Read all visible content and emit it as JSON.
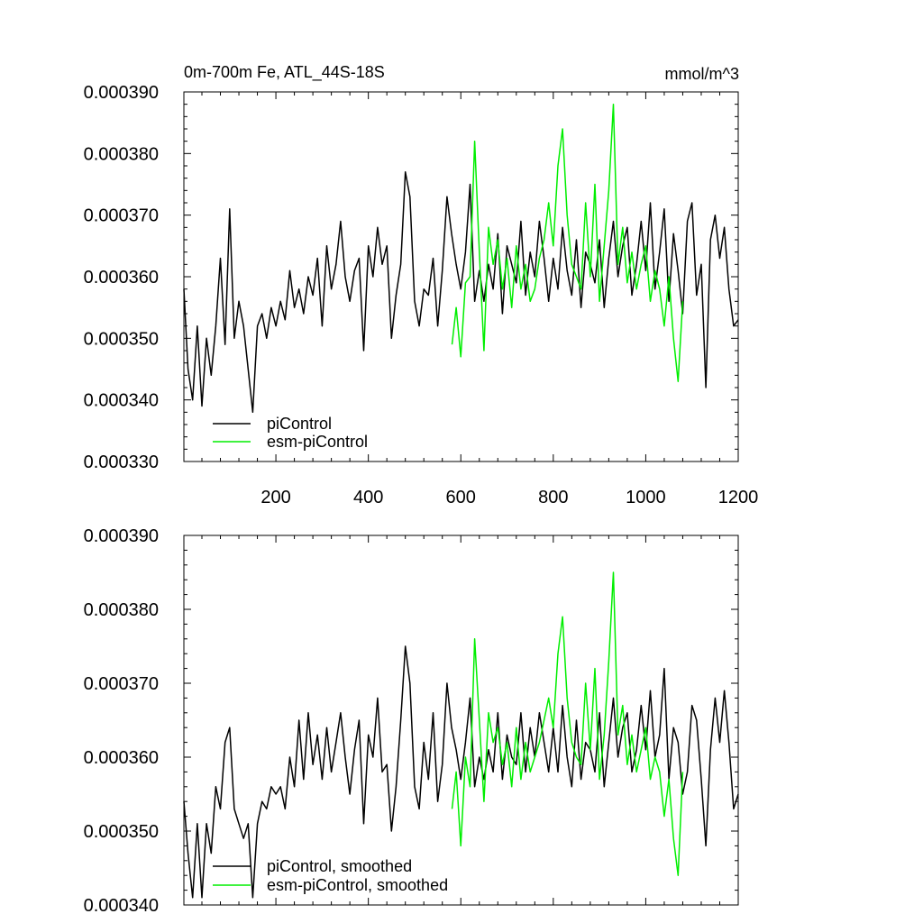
{
  "colors": {
    "piControl": "#000000",
    "esm_piControl": "#00ee00",
    "frame": "#000000"
  },
  "chart_data": [
    {
      "type": "line",
      "title": "0m-700m Fe, ATL_44S-18S",
      "units": "mmol/m^3",
      "xlim": [
        1,
        1200
      ],
      "ylim": [
        0.00033,
        0.00039
      ],
      "xticks": [
        200,
        400,
        600,
        800,
        1000,
        1200
      ],
      "xtick_labels": [
        "200",
        "400",
        "600",
        "800",
        "1000",
        "1200"
      ],
      "yticks": [
        0.00033,
        0.00034,
        0.00035,
        0.00036,
        0.00037,
        0.00038,
        0.00039
      ],
      "ytick_labels": [
        "0.000330",
        "0.000340",
        "0.000350",
        "0.000360",
        "0.000370",
        "0.000380",
        "0.000390"
      ],
      "legend": {
        "position": "bottom-left",
        "entries": [
          "piControl",
          "esm-piControl"
        ]
      },
      "series": [
        {
          "name": "piControl",
          "color_key": "piControl",
          "x": [
            1,
            10,
            20,
            30,
            40,
            50,
            60,
            70,
            80,
            90,
            100,
            110,
            120,
            130,
            140,
            150,
            160,
            170,
            180,
            190,
            200,
            210,
            220,
            230,
            240,
            250,
            260,
            270,
            280,
            290,
            300,
            310,
            320,
            330,
            340,
            350,
            360,
            370,
            380,
            390,
            400,
            410,
            420,
            430,
            440,
            450,
            460,
            470,
            480,
            490,
            500,
            510,
            520,
            530,
            540,
            550,
            560,
            570,
            580,
            590,
            600,
            610,
            620,
            630,
            640,
            650,
            660,
            670,
            680,
            690,
            700,
            710,
            720,
            730,
            740,
            750,
            760,
            770,
            780,
            790,
            800,
            810,
            820,
            830,
            840,
            850,
            860,
            870,
            880,
            890,
            900,
            910,
            920,
            930,
            940,
            950,
            960,
            970,
            980,
            990,
            1000,
            1010,
            1020,
            1030,
            1040,
            1050,
            1060,
            1070,
            1080,
            1090,
            1100,
            1110,
            1120,
            1130,
            1140,
            1150,
            1160,
            1170,
            1180,
            1190,
            1200
          ],
          "y": [
            0.000358,
            0.000345,
            0.00034,
            0.000352,
            0.000339,
            0.00035,
            0.000344,
            0.000352,
            0.000363,
            0.000349,
            0.000371,
            0.00035,
            0.000356,
            0.000352,
            0.000345,
            0.000338,
            0.000352,
            0.000354,
            0.00035,
            0.000355,
            0.000352,
            0.000356,
            0.000353,
            0.000361,
            0.000355,
            0.000358,
            0.000354,
            0.00036,
            0.000357,
            0.000363,
            0.000352,
            0.000365,
            0.000358,
            0.000362,
            0.000369,
            0.00036,
            0.000356,
            0.000361,
            0.000363,
            0.000348,
            0.000365,
            0.00036,
            0.000368,
            0.000362,
            0.000365,
            0.00035,
            0.000357,
            0.000362,
            0.000377,
            0.000373,
            0.000356,
            0.000352,
            0.000358,
            0.000357,
            0.000363,
            0.000352,
            0.000361,
            0.000373,
            0.000367,
            0.000362,
            0.000358,
            0.000364,
            0.000375,
            0.000356,
            0.000361,
            0.000356,
            0.000362,
            0.000358,
            0.000367,
            0.000354,
            0.000365,
            0.000362,
            0.000359,
            0.000369,
            0.000357,
            0.000364,
            0.00036,
            0.000369,
            0.000363,
            0.000356,
            0.000363,
            0.000358,
            0.000368,
            0.000361,
            0.000357,
            0.000366,
            0.000355,
            0.000364,
            0.000362,
            0.000359,
            0.000366,
            0.000355,
            0.000363,
            0.000369,
            0.00036,
            0.000365,
            0.000368,
            0.000357,
            0.000362,
            0.000369,
            0.000361,
            0.000372,
            0.000358,
            0.000364,
            0.000371,
            0.000356,
            0.000367,
            0.000361,
            0.000354,
            0.000369,
            0.000372,
            0.000357,
            0.000362,
            0.000342,
            0.000366,
            0.00037,
            0.000363,
            0.000368,
            0.000358,
            0.000352,
            0.000353
          ]
        },
        {
          "name": "esm-piControl",
          "color_key": "esm_piControl",
          "x": [
            581,
            590,
            600,
            610,
            620,
            630,
            640,
            650,
            660,
            670,
            680,
            690,
            700,
            710,
            720,
            730,
            740,
            750,
            760,
            770,
            780,
            790,
            800,
            810,
            820,
            830,
            840,
            850,
            860,
            870,
            880,
            890,
            900,
            910,
            920,
            930,
            940,
            950,
            960,
            970,
            980,
            990,
            1000,
            1010,
            1020,
            1030,
            1040,
            1050,
            1060,
            1070,
            1080
          ],
          "y": [
            0.000349,
            0.000355,
            0.000347,
            0.000359,
            0.00036,
            0.000382,
            0.000364,
            0.000348,
            0.000368,
            0.000362,
            0.000366,
            0.000358,
            0.000363,
            0.000355,
            0.000365,
            0.000358,
            0.000362,
            0.000356,
            0.000358,
            0.000363,
            0.000366,
            0.000372,
            0.000365,
            0.000378,
            0.000384,
            0.00037,
            0.000362,
            0.00036,
            0.000358,
            0.000372,
            0.00036,
            0.000375,
            0.000356,
            0.000365,
            0.000374,
            0.000388,
            0.000362,
            0.000368,
            0.000359,
            0.000364,
            0.000358,
            0.000362,
            0.000365,
            0.000356,
            0.000361,
            0.000358,
            0.000352,
            0.00036,
            0.00035,
            0.000343,
            0.000356
          ]
        }
      ]
    },
    {
      "type": "line",
      "xlim": [
        1,
        1200
      ],
      "ylim": [
        0.00034,
        0.00039
      ],
      "yticks": [
        0.00034,
        0.00035,
        0.00036,
        0.00037,
        0.00038,
        0.00039
      ],
      "ytick_labels": [
        "0.000340",
        "0.000350",
        "0.000360",
        "0.000370",
        "0.000380",
        "0.000390"
      ],
      "legend": {
        "position": "bottom-left",
        "entries": [
          "piControl, smoothed",
          "esm-piControl, smoothed"
        ]
      },
      "series": [
        {
          "name": "piControl, smoothed",
          "color_key": "piControl",
          "x": [
            1,
            10,
            20,
            30,
            40,
            50,
            60,
            70,
            80,
            90,
            100,
            110,
            120,
            130,
            140,
            150,
            160,
            170,
            180,
            190,
            200,
            210,
            220,
            230,
            240,
            250,
            260,
            270,
            280,
            290,
            300,
            310,
            320,
            330,
            340,
            350,
            360,
            370,
            380,
            390,
            400,
            410,
            420,
            430,
            440,
            450,
            460,
            470,
            480,
            490,
            500,
            510,
            520,
            530,
            540,
            550,
            560,
            570,
            580,
            590,
            600,
            610,
            620,
            630,
            640,
            650,
            660,
            670,
            680,
            690,
            700,
            710,
            720,
            730,
            740,
            750,
            760,
            770,
            780,
            790,
            800,
            810,
            820,
            830,
            840,
            850,
            860,
            870,
            880,
            890,
            900,
            910,
            920,
            930,
            940,
            950,
            960,
            970,
            980,
            990,
            1000,
            1010,
            1020,
            1030,
            1040,
            1050,
            1060,
            1070,
            1080,
            1090,
            1100,
            1110,
            1120,
            1130,
            1140,
            1150,
            1160,
            1170,
            1180,
            1190,
            1200
          ],
          "y": [
            0.000354,
            0.000347,
            0.000341,
            0.000351,
            0.000341,
            0.000351,
            0.000347,
            0.000356,
            0.000353,
            0.000362,
            0.000364,
            0.000353,
            0.000351,
            0.000349,
            0.000351,
            0.000341,
            0.000351,
            0.000354,
            0.000353,
            0.000356,
            0.000355,
            0.000356,
            0.000353,
            0.00036,
            0.000356,
            0.000365,
            0.000357,
            0.000366,
            0.000359,
            0.000363,
            0.000357,
            0.000364,
            0.000358,
            0.000362,
            0.000366,
            0.00036,
            0.000355,
            0.000361,
            0.000365,
            0.000351,
            0.000363,
            0.00036,
            0.000368,
            0.000358,
            0.000359,
            0.00035,
            0.000356,
            0.000365,
            0.000375,
            0.00037,
            0.000356,
            0.000353,
            0.000362,
            0.000357,
            0.000366,
            0.000354,
            0.000359,
            0.00037,
            0.000364,
            0.000361,
            0.000357,
            0.000362,
            0.000368,
            0.000356,
            0.00036,
            0.000357,
            0.000361,
            0.000358,
            0.000366,
            0.000357,
            0.000363,
            0.00036,
            0.000359,
            0.000366,
            0.000358,
            0.000364,
            0.00036,
            0.000366,
            0.000362,
            0.000358,
            0.000364,
            0.000358,
            0.000367,
            0.00036,
            0.000356,
            0.000365,
            0.000357,
            0.000362,
            0.000361,
            0.000358,
            0.000366,
            0.000356,
            0.000362,
            0.000368,
            0.00036,
            0.000364,
            0.000366,
            0.000358,
            0.000361,
            0.000367,
            0.000361,
            0.000369,
            0.00036,
            0.000363,
            0.000372,
            0.000357,
            0.000364,
            0.000362,
            0.000355,
            0.000358,
            0.000367,
            0.000365,
            0.000357,
            0.000348,
            0.000361,
            0.000368,
            0.000362,
            0.000369,
            0.000362,
            0.000353,
            0.000355
          ]
        },
        {
          "name": "esm-piControl, smoothed",
          "color_key": "esm_piControl",
          "x": [
            581,
            590,
            600,
            610,
            620,
            630,
            640,
            650,
            660,
            670,
            680,
            690,
            700,
            710,
            720,
            730,
            740,
            750,
            760,
            770,
            780,
            790,
            800,
            810,
            820,
            830,
            840,
            850,
            860,
            870,
            880,
            890,
            900,
            910,
            920,
            930,
            940,
            950,
            960,
            970,
            980,
            990,
            1000,
            1010,
            1020,
            1030,
            1040,
            1050,
            1060,
            1070,
            1080
          ],
          "y": [
            0.000353,
            0.000358,
            0.000348,
            0.00036,
            0.000356,
            0.000376,
            0.000365,
            0.000354,
            0.000366,
            0.000362,
            0.000364,
            0.000359,
            0.000362,
            0.000356,
            0.000364,
            0.000357,
            0.000362,
            0.000358,
            0.00036,
            0.000362,
            0.000365,
            0.000368,
            0.000364,
            0.000374,
            0.000379,
            0.000368,
            0.000362,
            0.00036,
            0.000359,
            0.00037,
            0.000361,
            0.000372,
            0.000357,
            0.000363,
            0.000373,
            0.000385,
            0.000363,
            0.000367,
            0.000359,
            0.000363,
            0.000358,
            0.000361,
            0.000364,
            0.000357,
            0.00036,
            0.000358,
            0.000352,
            0.000357,
            0.000349,
            0.000344,
            0.000358
          ]
        }
      ]
    }
  ]
}
